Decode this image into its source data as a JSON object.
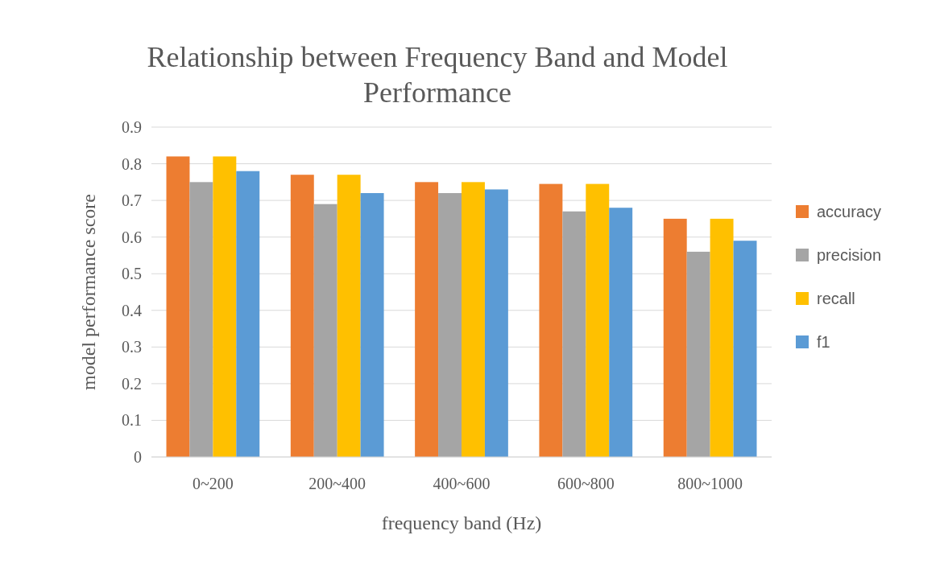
{
  "chart_data": {
    "type": "bar",
    "title": "Relationship between Frequency Band and Model Performance",
    "xlabel": "frequency band (Hz)",
    "ylabel": "model performance score",
    "categories": [
      "0~200",
      "200~400",
      "400~600",
      "600~800",
      "800~1000"
    ],
    "series": [
      {
        "name": "accuracy",
        "color": "#ed7d31",
        "values": [
          0.82,
          0.77,
          0.75,
          0.745,
          0.65
        ]
      },
      {
        "name": "precision",
        "color": "#a5a5a5",
        "values": [
          0.75,
          0.69,
          0.72,
          0.67,
          0.56
        ]
      },
      {
        "name": "recall",
        "color": "#ffc000",
        "values": [
          0.82,
          0.77,
          0.75,
          0.745,
          0.65
        ]
      },
      {
        "name": "f1",
        "color": "#5b9bd5",
        "values": [
          0.78,
          0.72,
          0.73,
          0.68,
          0.59
        ]
      }
    ],
    "ylim": [
      0,
      0.9
    ],
    "yticks": [
      0,
      0.1,
      0.2,
      0.3,
      0.4,
      0.5,
      0.6,
      0.7,
      0.8,
      0.9
    ],
    "grid": "y",
    "legend": "right"
  }
}
